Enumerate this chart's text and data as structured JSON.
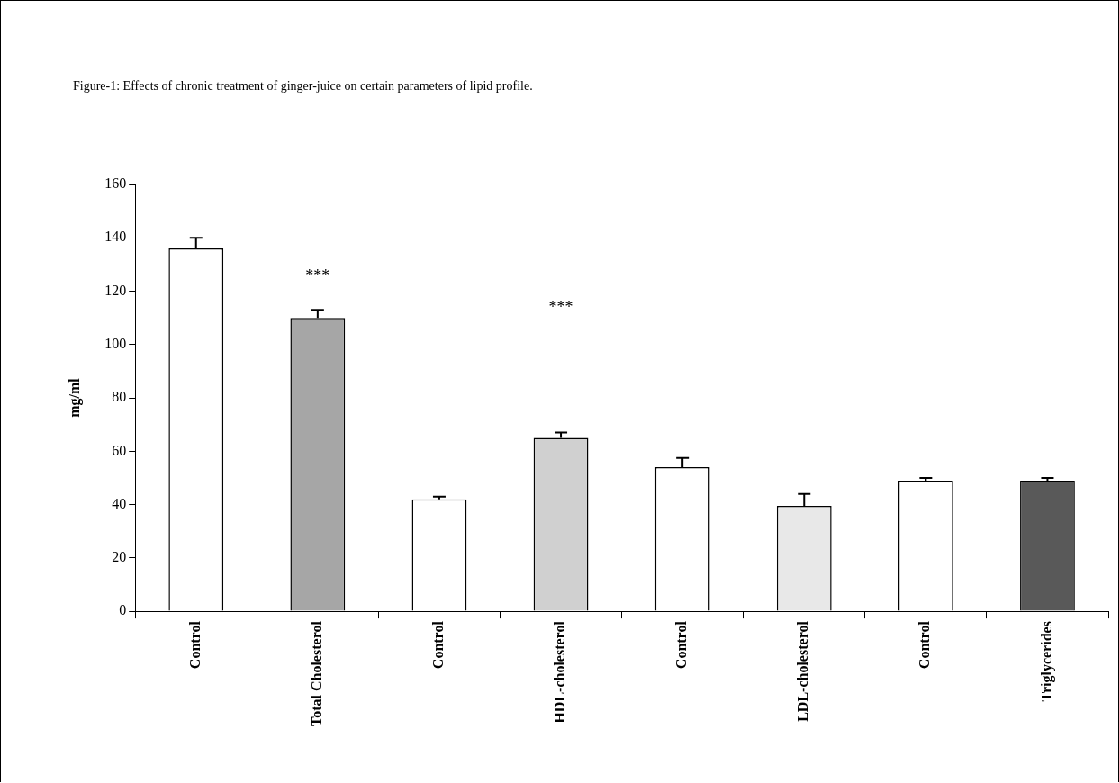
{
  "chart_data": {
    "type": "bar",
    "title": "Figure-1: Effects of chronic treatment of ginger-juice on certain parameters of lipid profile.",
    "ylabel": "mg/ml",
    "categories": [
      "Control",
      "Total Cholesterol",
      "Control",
      "HDL-cholesterol",
      "Control",
      "LDL-cholesterol",
      "Control",
      "Triglycerides"
    ],
    "values": [
      136,
      110,
      42,
      65,
      54,
      39.5,
      49,
      49
    ],
    "colors": [
      "#ffffff",
      "#a6a6a6",
      "#ffffff",
      "#d0d0d0",
      "#ffffff",
      "#e8e8e8",
      "#ffffff",
      "#595959"
    ],
    "errors": [
      [
        136,
        140
      ],
      [
        110,
        113
      ],
      [
        42,
        43
      ],
      [
        65,
        67
      ],
      [
        54,
        57.5
      ],
      [
        39.5,
        44
      ],
      [
        49,
        50
      ],
      [
        49,
        50
      ]
    ],
    "ylim": [
      0,
      160
    ],
    "yticks": [
      0,
      20,
      40,
      60,
      80,
      100,
      120,
      140,
      160
    ],
    "grid": false,
    "legend": false,
    "annotations": [
      "***",
      "***"
    ]
  }
}
